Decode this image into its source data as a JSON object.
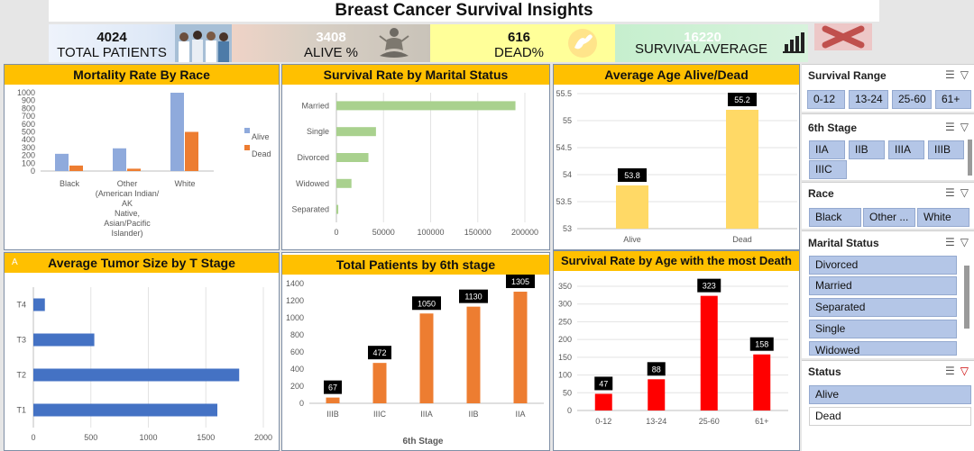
{
  "title": "Breast Cancer Survival Insights",
  "kpis": {
    "total_value": "4024",
    "total_label": "TOTAL PATIENTS",
    "alive_value": "3408",
    "alive_label": "ALIVE %",
    "dead_value": "616",
    "dead_label": "DEAD%",
    "surv_value": "16220",
    "surv_label": "SURVIVAL AVERAGE"
  },
  "colors": {
    "alive": "#8faadc",
    "dead": "#ed7d31",
    "green": "#a9d18e",
    "yellow": "#ffd966",
    "blue": "#4472c4",
    "red": "#ff0000",
    "header": "#ffc000"
  },
  "panels": {
    "race": {
      "title": "Mortality Rate By Race",
      "legend_alive": "Alive",
      "legend_dead": "Dead"
    },
    "marital": {
      "title": "Survival Rate by Marital Status"
    },
    "age": {
      "title": "Average Age Alive/Dead"
    },
    "tumor": {
      "title": "Average Tumor Size by T Stage",
      "corner": "A"
    },
    "stage": {
      "title": "Total Patients by 6th stage",
      "xlabel": "6th Stage"
    },
    "agedeath": {
      "title": "Survival Rate by Age with the most Death"
    }
  },
  "chart_data": [
    {
      "type": "bar",
      "title": "Mortality Rate By Race",
      "categories": [
        "Black",
        "Other (American Indian/AK Native, Asian/Pacific Islander)",
        "White"
      ],
      "series": [
        {
          "name": "Alive",
          "values": [
            220,
            290,
            1000
          ]
        },
        {
          "name": "Dead",
          "values": [
            70,
            30,
            500
          ]
        }
      ],
      "yticks": [
        "0",
        "100",
        "200",
        "300",
        "400",
        "500",
        "600",
        "700",
        "800",
        "900",
        "1000"
      ],
      "ylim": [
        0,
        1000
      ],
      "legend": "right"
    },
    {
      "type": "bar",
      "orientation": "horizontal",
      "title": "Survival Rate by Marital Status",
      "categories": [
        "Married",
        "Single",
        "Divorced",
        "Widowed",
        "Separated"
      ],
      "values": [
        190000,
        42000,
        34000,
        16000,
        2000
      ],
      "xticks": [
        "0",
        "50000",
        "100000",
        "150000",
        "200000"
      ],
      "xlim": [
        0,
        200000
      ]
    },
    {
      "type": "bar",
      "title": "Average Age Alive/Dead",
      "categories": [
        "Alive",
        "Dead"
      ],
      "values": [
        53.8,
        55.2
      ],
      "labels": [
        "53.8",
        "55.2"
      ],
      "yticks": [
        "53",
        "53.5",
        "54",
        "54.5",
        "55",
        "55.5"
      ],
      "ylim": [
        53,
        55.5
      ]
    },
    {
      "type": "bar",
      "orientation": "horizontal",
      "title": "Average Tumor Size by T Stage",
      "categories": [
        "T4",
        "T3",
        "T2",
        "T1"
      ],
      "values": [
        100,
        530,
        1790,
        1600
      ],
      "xticks": [
        "0",
        "500",
        "1000",
        "1500",
        "2000"
      ],
      "xlim": [
        0,
        2000
      ]
    },
    {
      "type": "bar",
      "title": "Total Patients by 6th stage",
      "xlabel": "6th Stage",
      "categories": [
        "IIIB",
        "IIIC",
        "IIIA",
        "IIB",
        "IIA"
      ],
      "values": [
        67,
        472,
        1050,
        1130,
        1305
      ],
      "labels": [
        "67",
        "472",
        "1050",
        "1130",
        "1305"
      ],
      "yticks": [
        "0",
        "200",
        "400",
        "600",
        "800",
        "1000",
        "1200",
        "1400"
      ],
      "ylim": [
        0,
        1400
      ]
    },
    {
      "type": "bar",
      "title": "Survival Rate by Age with the most Death",
      "categories": [
        "0-12",
        "13-24",
        "25-60",
        "61+"
      ],
      "values": [
        47,
        88,
        323,
        158
      ],
      "labels": [
        "47",
        "88",
        "323",
        "158"
      ],
      "yticks": [
        "0",
        "50",
        "100",
        "150",
        "200",
        "250",
        "300",
        "350"
      ],
      "ylim": [
        0,
        350
      ]
    }
  ],
  "slicers": {
    "survival": {
      "title": "Survival Range",
      "items": [
        "0-12",
        "13-24",
        "25-60",
        "61+"
      ]
    },
    "stage": {
      "title": "6th Stage",
      "items": [
        "IIA",
        "IIB",
        "IIIA",
        "IIIB",
        "IIIC"
      ]
    },
    "race": {
      "title": "Race",
      "items": [
        "Black",
        "Other ...",
        "White"
      ]
    },
    "marital": {
      "title": "Marital Status",
      "items": [
        "Divorced",
        "Married",
        "Separated",
        "Single",
        "Widowed"
      ]
    },
    "status": {
      "title": "Status",
      "items": [
        "Alive",
        "Dead"
      ]
    }
  },
  "icons": {
    "multiselect": "multi-select-icon",
    "clear": "clear-filter-icon",
    "chart": "bar-chart-icon",
    "dove": "dove-icon",
    "lotus": "meditation-icon",
    "team": "team-photo-icon",
    "close": "close-x-icon"
  }
}
